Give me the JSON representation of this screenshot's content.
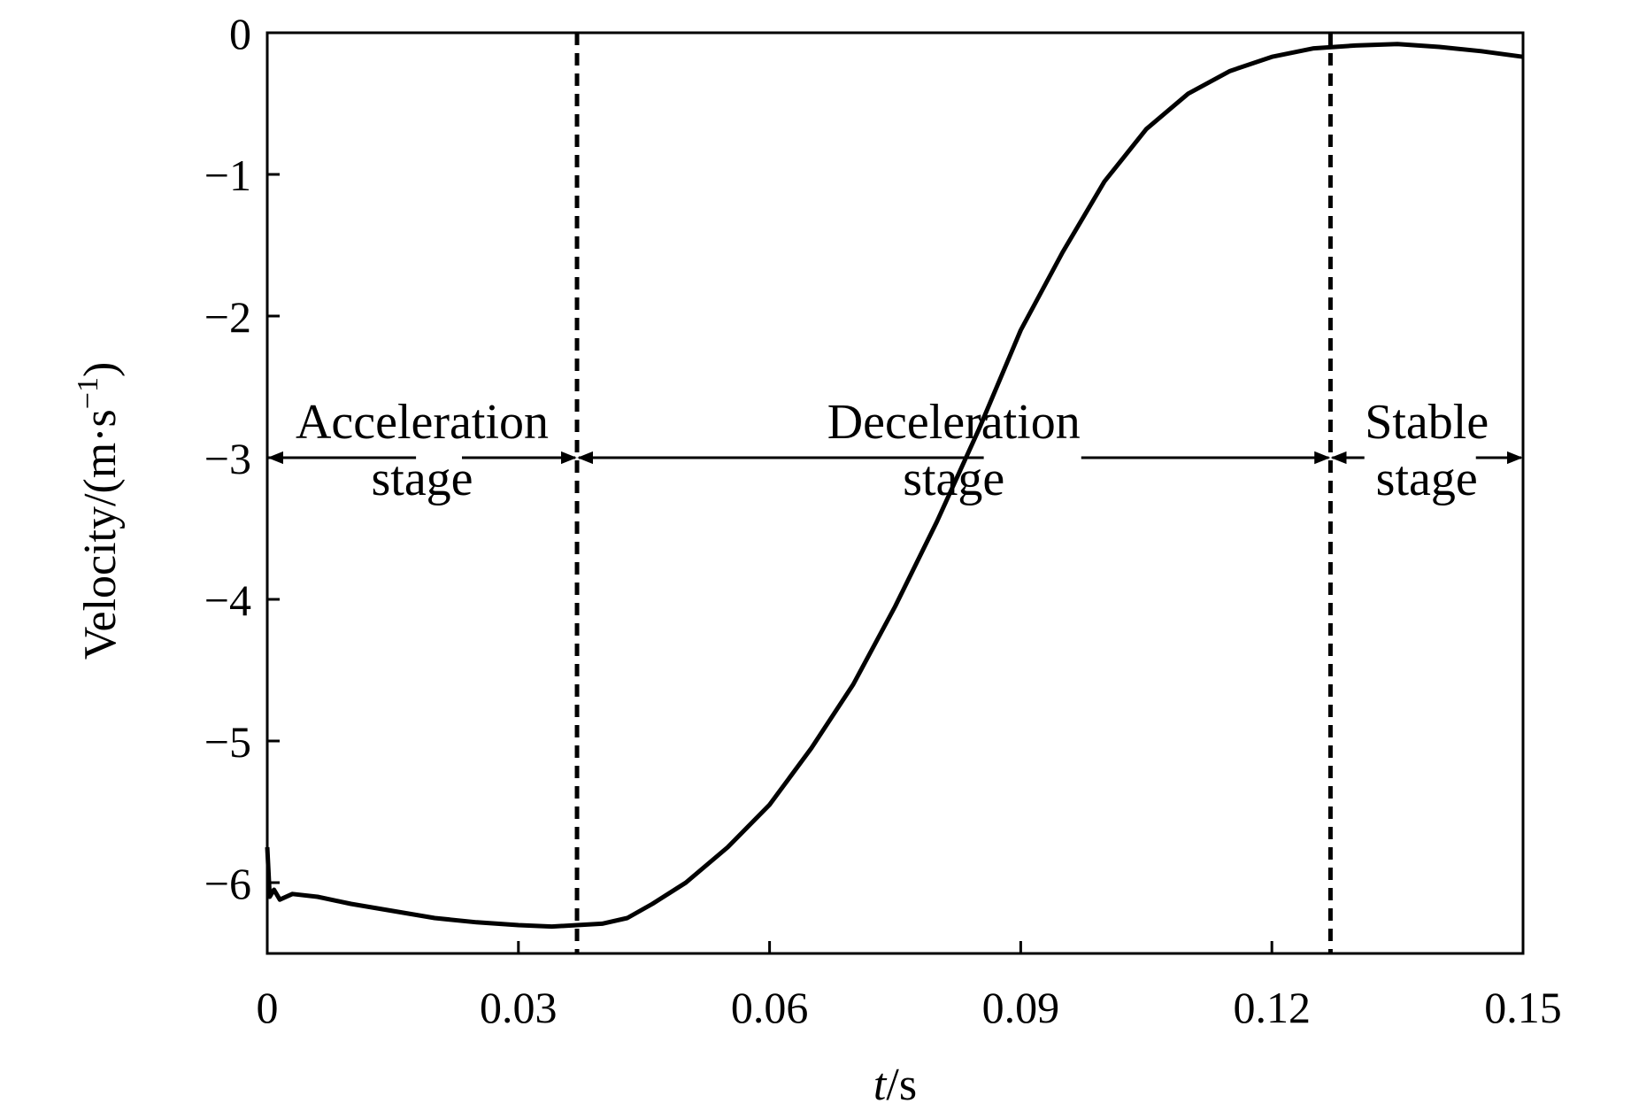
{
  "chart_data": {
    "type": "line",
    "title": "",
    "xlabel": {
      "italic": "t",
      "rest": "/s"
    },
    "ylabel": {
      "main": "Velocity/(m·s",
      "sup": "−1",
      "close": ")"
    },
    "xlim": [
      0,
      0.15
    ],
    "ylim": [
      -6.5,
      0
    ],
    "xticks": [
      0,
      0.03,
      0.06,
      0.09,
      0.12,
      0.15
    ],
    "xtick_labels": [
      "0",
      "0.03",
      "0.06",
      "0.09",
      "0.12",
      "0.15"
    ],
    "yticks": [
      0,
      -1,
      -2,
      -3,
      -4,
      -5,
      -6
    ],
    "ytick_labels": [
      "0",
      "−1",
      "−2",
      "−3",
      "−4",
      "−5",
      "−6"
    ],
    "grid": false,
    "legend": "none",
    "series": [
      {
        "x": [
          0,
          0.0003,
          0.0008,
          0.0015,
          0.003,
          0.006,
          0.01,
          0.015,
          0.02,
          0.025,
          0.03,
          0.034,
          0.037,
          0.04,
          0.043,
          0.046,
          0.05,
          0.055,
          0.06,
          0.065,
          0.07,
          0.075,
          0.08,
          0.085,
          0.09,
          0.095,
          0.1,
          0.105,
          0.11,
          0.115,
          0.12,
          0.125,
          0.13,
          0.135,
          0.14,
          0.145,
          0.15
        ],
        "y": [
          -5.75,
          -6.1,
          -6.05,
          -6.12,
          -6.08,
          -6.1,
          -6.15,
          -6.2,
          -6.25,
          -6.28,
          -6.3,
          -6.31,
          -6.3,
          -6.29,
          -6.25,
          -6.15,
          -6.0,
          -5.75,
          -5.45,
          -5.05,
          -4.6,
          -4.05,
          -3.45,
          -2.8,
          -2.1,
          -1.55,
          -1.05,
          -0.68,
          -0.43,
          -0.27,
          -0.17,
          -0.11,
          -0.09,
          -0.08,
          -0.1,
          -0.13,
          -0.17
        ]
      }
    ],
    "dividers_x": [
      0.037,
      0.127
    ],
    "stage_arrow_y": -3,
    "stages": [
      {
        "line1": "Acceleration",
        "line2": "stage",
        "from": 0,
        "to": 0.037
      },
      {
        "line1": "Deceleration",
        "line2": "stage",
        "from": 0.037,
        "to": 0.127
      },
      {
        "line1": "Stable",
        "line2": "stage",
        "from": 0.127,
        "to": 0.15
      }
    ]
  }
}
